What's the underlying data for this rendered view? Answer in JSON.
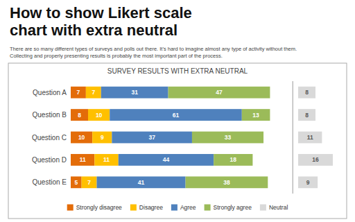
{
  "title": "How to show Likert scale\nchart with extra neutral",
  "subtitle": "There are so many different types of surveys and polls out there. It’s hard to imagine almost any type of activity without them.\nCollecting and properly presenting results is probably the most important part of the process.",
  "chart_data": {
    "type": "bar",
    "title": "SURVEY RESULTS WITH EXTRA NEUTRAL",
    "orientation": "horizontal",
    "stacked": true,
    "data_labels": true,
    "tick_labels": "y",
    "grid": false,
    "legend": "bottom",
    "categories": [
      "Question A",
      "Question B",
      "Question C",
      "Question D",
      "Question E"
    ],
    "xlim": [
      0,
      100
    ],
    "series": [
      {
        "name": "Strongly disagree",
        "color": "#e36c09",
        "values": [
          7,
          8,
          10,
          11,
          5
        ]
      },
      {
        "name": "Disagree",
        "color": "#ffc000",
        "values": [
          7,
          10,
          9,
          11,
          7
        ]
      },
      {
        "name": "Agree",
        "color": "#4f81bd",
        "values": [
          31,
          61,
          37,
          44,
          41
        ]
      },
      {
        "name": "Strongly agree",
        "color": "#9bbb59",
        "values": [
          47,
          13,
          33,
          18,
          38
        ]
      },
      {
        "name": "Neutral",
        "color": "#d9d9d9",
        "values": [
          8,
          8,
          11,
          16,
          9
        ]
      }
    ]
  }
}
